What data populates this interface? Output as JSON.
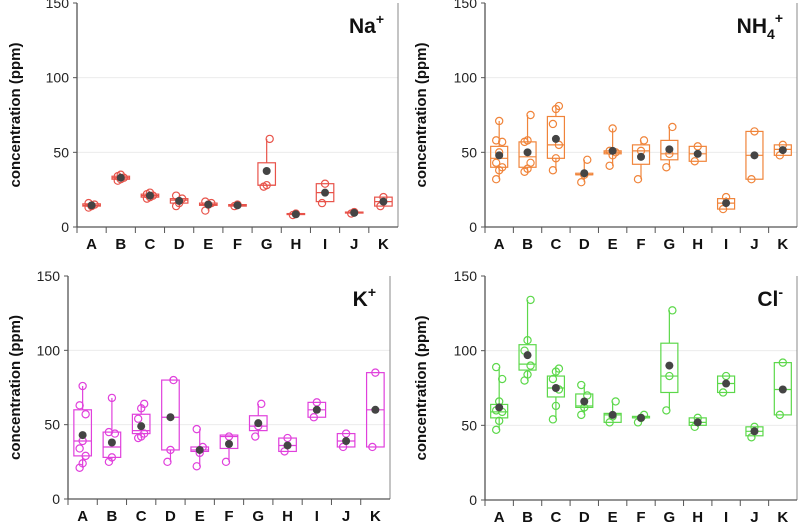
{
  "chart_data": [
    {
      "type": "box",
      "title": {
        "base": "Na",
        "sub": "",
        "sup": "+"
      },
      "ylabel": "concentration (ppm)",
      "ylim": [
        0,
        150
      ],
      "yticks": [
        "0",
        "50",
        "100",
        "150"
      ],
      "grid": true,
      "color": "#e8534a",
      "categories": [
        "A",
        "B",
        "C",
        "D",
        "E",
        "F",
        "G",
        "H",
        "I",
        "J",
        "K"
      ],
      "boxes": [
        {
          "q1": 14,
          "median": 14.5,
          "q3": 15.5,
          "min": 13,
          "max": 16,
          "mean": 14.5,
          "points": [
            13,
            14,
            15,
            16
          ]
        },
        {
          "q1": 32,
          "median": 33,
          "q3": 34,
          "min": 31,
          "max": 35,
          "mean": 33,
          "points": [
            31,
            32,
            33,
            34,
            35
          ]
        },
        {
          "q1": 20,
          "median": 21,
          "q3": 22,
          "min": 19,
          "max": 23,
          "mean": 21,
          "points": [
            19,
            20,
            21,
            22,
            23
          ]
        },
        {
          "q1": 16,
          "median": 18,
          "q3": 19,
          "min": 14,
          "max": 21,
          "mean": 17.5,
          "points": [
            14,
            16,
            19,
            21
          ]
        },
        {
          "q1": 14.5,
          "median": 15,
          "q3": 16,
          "min": 11,
          "max": 17,
          "mean": 15,
          "points": [
            11,
            15,
            16,
            17
          ]
        },
        {
          "q1": 14,
          "median": 14.5,
          "q3": 15,
          "min": 14,
          "max": 15,
          "mean": 14.5,
          "points": [
            14,
            15
          ]
        },
        {
          "q1": 28,
          "median": 28,
          "q3": 43,
          "min": 27,
          "max": 59,
          "mean": 37.5,
          "points": [
            27,
            28,
            59
          ]
        },
        {
          "q1": 8.5,
          "median": 8.5,
          "q3": 9,
          "min": 8,
          "max": 9,
          "mean": 8.5,
          "points": [
            8,
            9
          ]
        },
        {
          "q1": 17,
          "median": 23,
          "q3": 29,
          "min": 16,
          "max": 29,
          "mean": 23,
          "points": [
            16,
            29
          ]
        },
        {
          "q1": 9.5,
          "median": 10,
          "q3": 10,
          "min": 9,
          "max": 10,
          "mean": 9.5,
          "points": [
            9,
            10
          ]
        },
        {
          "q1": 14,
          "median": 17,
          "q3": 20,
          "min": 14,
          "max": 20,
          "mean": 17,
          "points": [
            14,
            20
          ]
        }
      ]
    },
    {
      "type": "box",
      "title": {
        "base": "NH",
        "sub": "4",
        "sup": "+"
      },
      "ylabel": "concentration (ppm)",
      "ylim": [
        0,
        150
      ],
      "yticks": [
        "0",
        "50",
        "100",
        "150"
      ],
      "grid": true,
      "color": "#f0843a",
      "categories": [
        "A",
        "B",
        "C",
        "D",
        "E",
        "F",
        "G",
        "H",
        "I",
        "J",
        "K"
      ],
      "boxes": [
        {
          "q1": 40,
          "median": 46,
          "q3": 54,
          "min": 32,
          "max": 71,
          "mean": 48,
          "points": [
            32,
            38,
            40,
            43,
            50,
            57,
            58,
            71
          ]
        },
        {
          "q1": 40,
          "median": 47,
          "q3": 57,
          "min": 37,
          "max": 75,
          "mean": 50,
          "points": [
            37,
            39,
            43,
            57,
            58,
            75
          ]
        },
        {
          "q1": 46,
          "median": 55,
          "q3": 74,
          "min": 38,
          "max": 81,
          "mean": 59,
          "points": [
            38,
            46,
            55,
            69,
            79,
            81
          ]
        },
        {
          "q1": 35,
          "median": 35,
          "q3": 36,
          "min": 30,
          "max": 45,
          "mean": 36,
          "points": [
            30,
            35,
            45
          ]
        },
        {
          "q1": 49,
          "median": 50,
          "q3": 51,
          "min": 41,
          "max": 66,
          "mean": 51,
          "points": [
            41,
            48,
            50,
            51,
            66
          ]
        },
        {
          "q1": 42,
          "median": 51,
          "q3": 55,
          "min": 32,
          "max": 58,
          "mean": 47,
          "points": [
            32,
            51,
            58
          ]
        },
        {
          "q1": 45,
          "median": 49,
          "q3": 58,
          "min": 40,
          "max": 67,
          "mean": 52,
          "points": [
            40,
            49,
            67
          ]
        },
        {
          "q1": 44,
          "median": 49,
          "q3": 54,
          "min": 44,
          "max": 54,
          "mean": 49,
          "points": [
            44,
            54
          ]
        },
        {
          "q1": 12,
          "median": 16,
          "q3": 19,
          "min": 12,
          "max": 20,
          "mean": 16,
          "points": [
            12,
            20
          ]
        },
        {
          "q1": 32,
          "median": 48,
          "q3": 64,
          "min": 32,
          "max": 64,
          "mean": 48,
          "points": [
            32,
            64
          ]
        },
        {
          "q1": 48,
          "median": 52,
          "q3": 55,
          "min": 48,
          "max": 55,
          "mean": 51.5,
          "points": [
            48,
            55
          ]
        }
      ]
    },
    {
      "type": "box",
      "title": {
        "base": "K",
        "sub": "",
        "sup": "+"
      },
      "ylabel": "concentration (ppm)",
      "ylim": [
        0,
        150
      ],
      "yticks": [
        "0",
        "50",
        "100",
        "150"
      ],
      "grid": true,
      "color": "#e040dc",
      "categories": [
        "A",
        "B",
        "C",
        "D",
        "E",
        "F",
        "G",
        "H",
        "I",
        "J",
        "K"
      ],
      "boxes": [
        {
          "q1": 29,
          "median": 39,
          "q3": 60,
          "min": 21,
          "max": 76,
          "mean": 43,
          "points": [
            21,
            24,
            29,
            34,
            39,
            57,
            63,
            76
          ]
        },
        {
          "q1": 28,
          "median": 35,
          "q3": 45,
          "min": 25,
          "max": 68,
          "mean": 38,
          "points": [
            25,
            28,
            44,
            45,
            68
          ]
        },
        {
          "q1": 44,
          "median": 46,
          "q3": 57,
          "min": 41,
          "max": 64,
          "mean": 49,
          "points": [
            41,
            42,
            44,
            54,
            61,
            64
          ]
        },
        {
          "q1": 33,
          "median": 55,
          "q3": 80,
          "min": 25,
          "max": 81,
          "mean": 55,
          "points": [
            25,
            33,
            80
          ]
        },
        {
          "q1": 32,
          "median": 33,
          "q3": 35,
          "min": 22,
          "max": 47,
          "mean": 33,
          "points": [
            22,
            31,
            35,
            47
          ]
        },
        {
          "q1": 34,
          "median": 42,
          "q3": 43,
          "min": 25,
          "max": 43,
          "mean": 37,
          "points": [
            25,
            42
          ]
        },
        {
          "q1": 46,
          "median": 49,
          "q3": 56,
          "min": 42,
          "max": 64,
          "mean": 51,
          "points": [
            42,
            49,
            64
          ]
        },
        {
          "q1": 32,
          "median": 36,
          "q3": 41,
          "min": 32,
          "max": 41,
          "mean": 36,
          "points": [
            32,
            41
          ]
        },
        {
          "q1": 55,
          "median": 60,
          "q3": 65,
          "min": 55,
          "max": 65,
          "mean": 60,
          "points": [
            55,
            65
          ]
        },
        {
          "q1": 35,
          "median": 39,
          "q3": 44,
          "min": 35,
          "max": 44,
          "mean": 39,
          "points": [
            35,
            44
          ]
        },
        {
          "q1": 35,
          "median": 60,
          "q3": 85,
          "min": 35,
          "max": 85,
          "mean": 60,
          "points": [
            35,
            85
          ]
        }
      ]
    },
    {
      "type": "box",
      "title": {
        "base": "Cl",
        "sub": "",
        "sup": "-"
      },
      "ylabel": "concentration (ppm)",
      "ylim": [
        0,
        150
      ],
      "yticks": [
        "0",
        "50",
        "100",
        "150"
      ],
      "grid": true,
      "color": "#5cd84a",
      "categories": [
        "A",
        "B",
        "C",
        "D",
        "E",
        "F",
        "G",
        "H",
        "I",
        "J",
        "K"
      ],
      "boxes": [
        {
          "q1": 55,
          "median": 59,
          "q3": 64,
          "min": 47,
          "max": 89,
          "mean": 62,
          "points": [
            47,
            53,
            59,
            60,
            66,
            81,
            89
          ]
        },
        {
          "q1": 87,
          "median": 91,
          "q3": 104,
          "min": 80,
          "max": 134,
          "mean": 97,
          "points": [
            80,
            84,
            90,
            100,
            107,
            134
          ]
        },
        {
          "q1": 69,
          "median": 75,
          "q3": 83,
          "min": 54,
          "max": 88,
          "mean": 75,
          "points": [
            54,
            63,
            74,
            81,
            86,
            88
          ]
        },
        {
          "q1": 62,
          "median": 63,
          "q3": 71,
          "min": 57,
          "max": 77,
          "mean": 66,
          "points": [
            57,
            62,
            70,
            77
          ]
        },
        {
          "q1": 52,
          "median": 57,
          "q3": 58,
          "min": 52,
          "max": 66,
          "mean": 57,
          "points": [
            52,
            56,
            66
          ]
        },
        {
          "q1": 55,
          "median": 55,
          "q3": 56,
          "min": 52,
          "max": 57,
          "mean": 55,
          "points": [
            52,
            55,
            57
          ]
        },
        {
          "q1": 72,
          "median": 83,
          "q3": 105,
          "min": 60,
          "max": 127,
          "mean": 90,
          "points": [
            60,
            83,
            127
          ]
        },
        {
          "q1": 50,
          "median": 52,
          "q3": 55,
          "min": 49,
          "max": 55,
          "mean": 52,
          "points": [
            49,
            55
          ]
        },
        {
          "q1": 72,
          "median": 78,
          "q3": 83,
          "min": 72,
          "max": 83,
          "mean": 78,
          "points": [
            72,
            83
          ]
        },
        {
          "q1": 43,
          "median": 46,
          "q3": 49,
          "min": 42,
          "max": 49,
          "mean": 46,
          "points": [
            42,
            49
          ]
        },
        {
          "q1": 57,
          "median": 74,
          "q3": 92,
          "min": 57,
          "max": 92,
          "mean": 74,
          "points": [
            57,
            92
          ]
        }
      ]
    }
  ],
  "mean_marker_color": "#444444"
}
